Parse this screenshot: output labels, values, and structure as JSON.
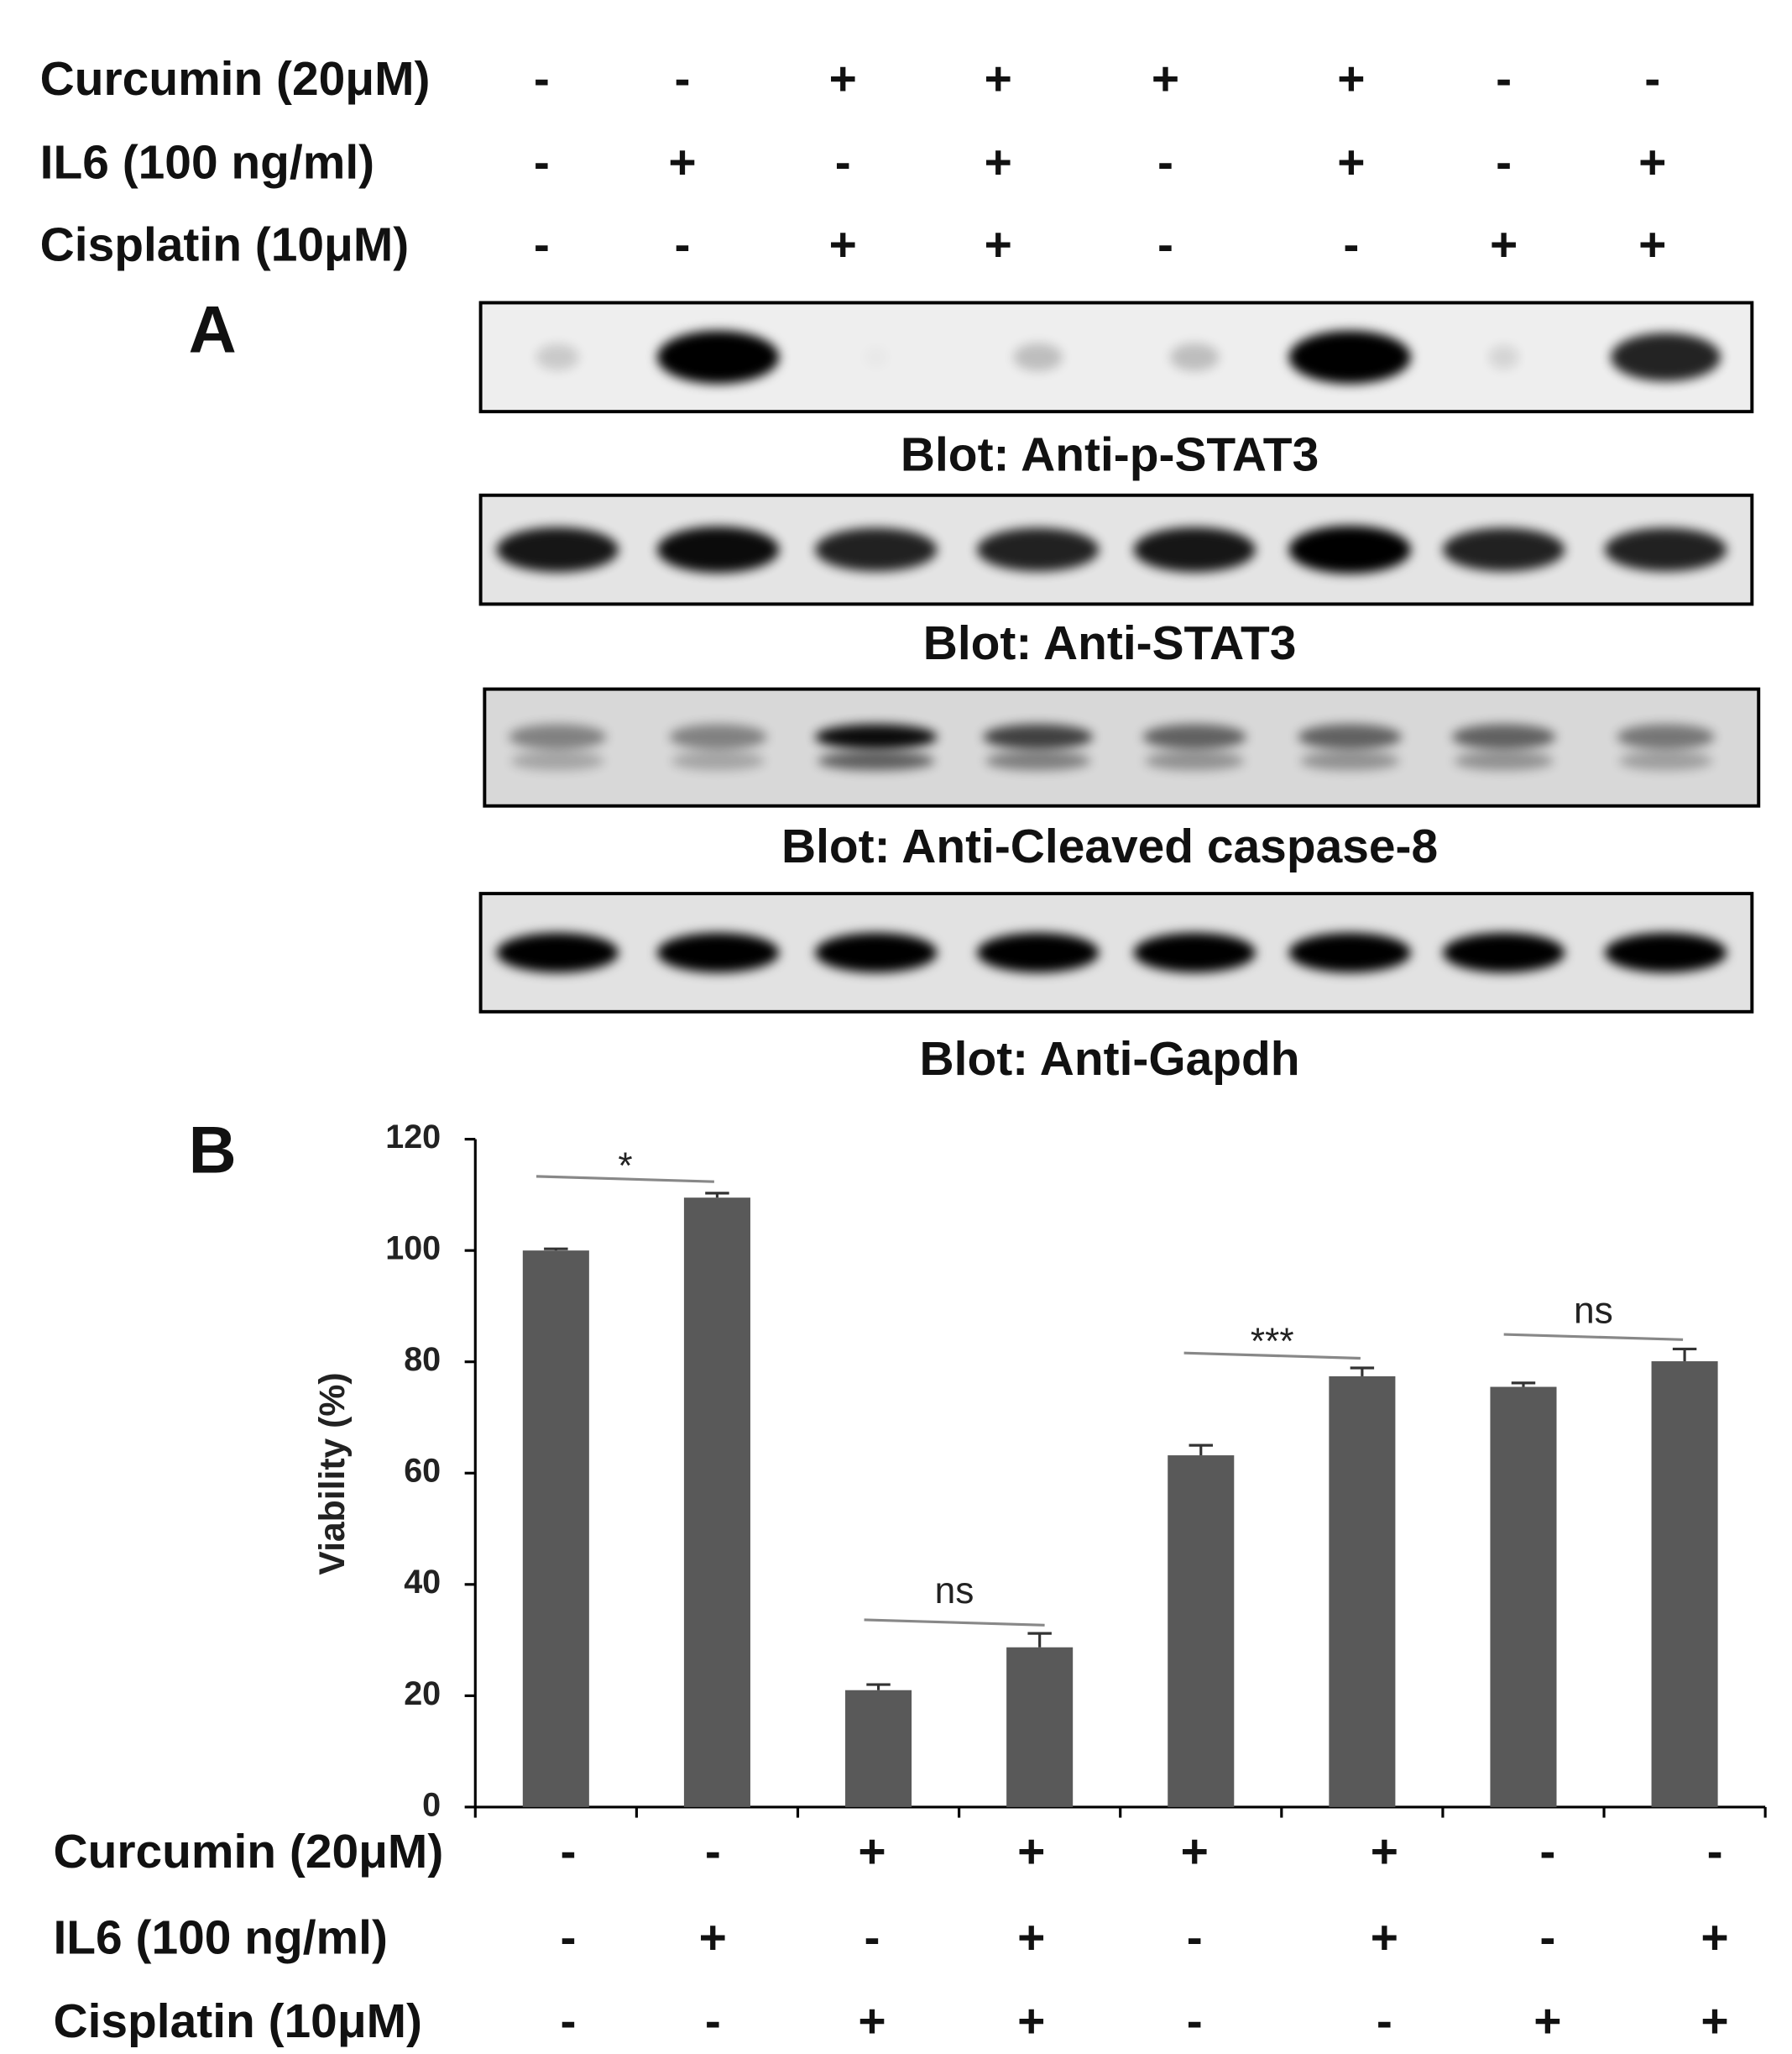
{
  "panel_a": {
    "letter": "A",
    "treatments": [
      {
        "label": "Curcumin (20μM)",
        "signs": [
          "-",
          "-",
          "+",
          "+",
          "+",
          "+",
          "-",
          "-"
        ]
      },
      {
        "label": "IL6 (100 ng/ml)",
        "signs": [
          "-",
          "+",
          "-",
          "+",
          "-",
          "+",
          "-",
          "+"
        ]
      },
      {
        "label": "Cisplatin (10μM)",
        "signs": [
          "-",
          "-",
          "+",
          "+",
          "-",
          "-",
          "+",
          "+"
        ]
      }
    ],
    "blots": [
      "Blot: Anti-p-STAT3",
      "Blot: Anti-STAT3",
      "Blot: Anti-Cleaved caspase-8",
      "Blot: Anti-Gapdh"
    ]
  },
  "chart_data": {
    "type": "bar",
    "letter": "B",
    "y_label": "Viability (%)",
    "categories": [
      null,
      null,
      null,
      null,
      null,
      null,
      null,
      null
    ],
    "values": [
      100,
      109.5,
      21,
      28.7,
      63.2,
      77.4,
      75.5,
      80.1
    ],
    "errors": [
      0.3,
      0.8,
      1,
      2.5,
      1.8,
      1.5,
      0.7,
      2.2
    ],
    "color": "#595959",
    "ylim": [
      0,
      120
    ],
    "yticks": [
      0,
      20,
      40,
      60,
      80,
      100,
      120
    ],
    "annotations": [
      "*",
      "ns",
      "***",
      "ns"
    ],
    "treatments": [
      {
        "label": "Curcumin (20μM)",
        "signs": [
          "-",
          "-",
          "+",
          "+",
          "+",
          "+",
          "-",
          "-"
        ]
      },
      {
        "label": "IL6 (100 ng/ml)",
        "signs": [
          "-",
          "+",
          "-",
          "+",
          "-",
          "+",
          "-",
          "+"
        ]
      },
      {
        "label": "Cisplatin (10μM)",
        "signs": [
          "-",
          "-",
          "+",
          "+",
          "-",
          "-",
          "+",
          "+"
        ]
      }
    ]
  }
}
